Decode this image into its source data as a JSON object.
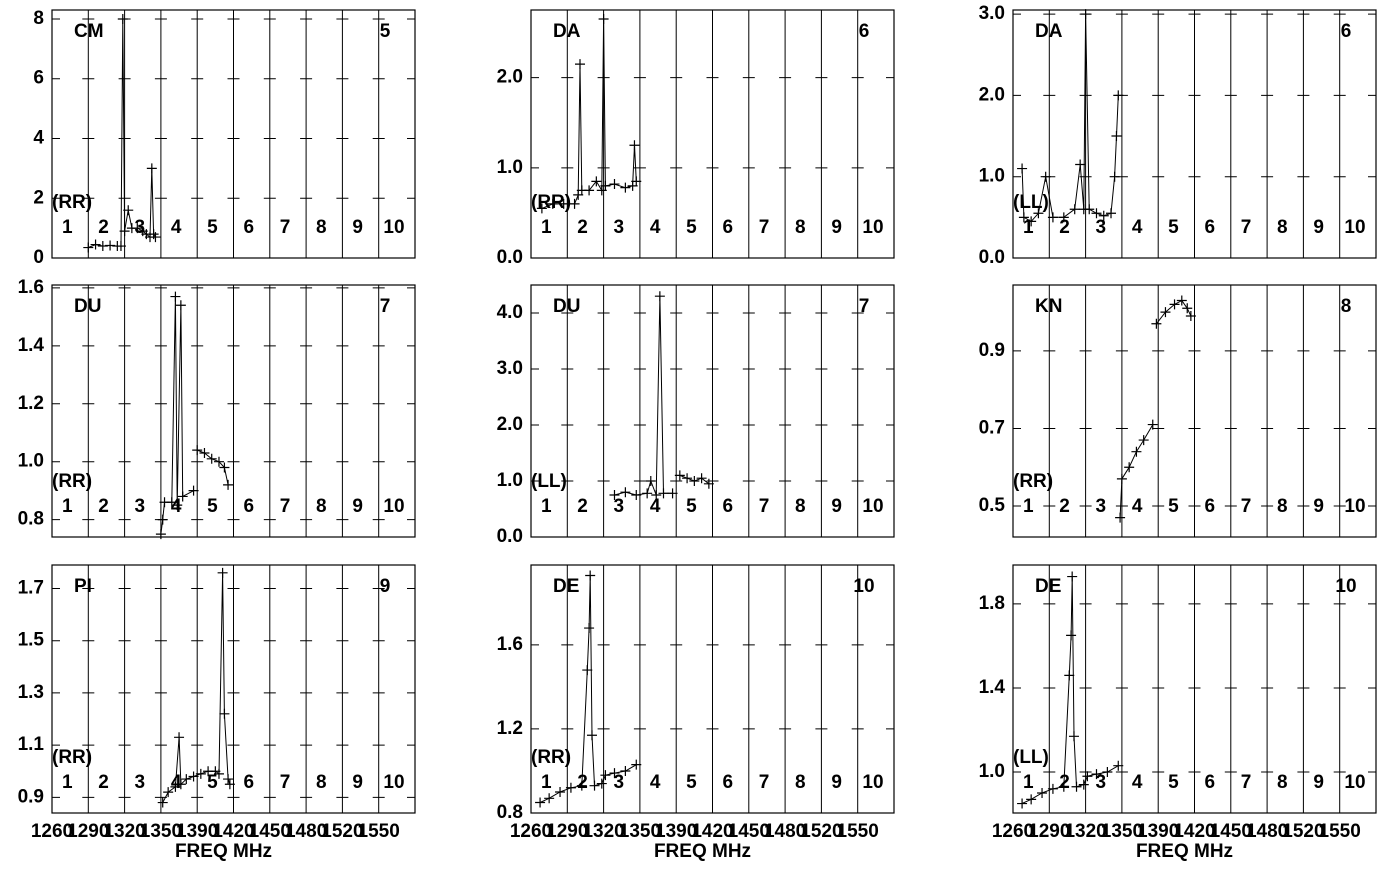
{
  "chart_data": [
    {
      "type": "line",
      "source": "CM",
      "panel_number": 5,
      "polarization": "(RR)",
      "spw_labels": [
        1,
        2,
        3,
        4,
        5,
        6,
        7,
        8,
        9,
        10
      ],
      "xlim": [
        0,
        10
      ],
      "xticks": [
        {
          "value": 0,
          "label": "1260"
        },
        {
          "value": 1,
          "label": "1290"
        },
        {
          "value": 2,
          "label": "1320"
        },
        {
          "value": 3,
          "label": "1350"
        },
        {
          "value": 4,
          "label": "1390"
        },
        {
          "value": 5,
          "label": "1420"
        },
        {
          "value": 6,
          "label": "1450"
        },
        {
          "value": 7,
          "label": "1480"
        },
        {
          "value": 8,
          "label": "1520"
        },
        {
          "value": 9,
          "label": "1550"
        }
      ],
      "ylim": [
        0,
        8.3
      ],
      "yticks": [
        0,
        2,
        4,
        6,
        8
      ],
      "color": "#000000",
      "x": [
        1.0,
        1.2,
        1.4,
        1.6,
        1.8,
        1.9,
        1.95,
        2.0,
        2.1,
        2.2,
        2.35,
        2.5,
        2.6,
        2.7,
        2.75,
        2.8,
        2.85
      ],
      "values": [
        0.35,
        0.45,
        0.4,
        0.42,
        0.4,
        0.4,
        8.0,
        0.9,
        1.6,
        1.0,
        1.0,
        0.9,
        0.8,
        0.7,
        3.0,
        0.8,
        0.7
      ]
    },
    {
      "type": "line",
      "source": "DA",
      "panel_number": 6,
      "polarization": "(RR)",
      "spw_labels": [
        1,
        2,
        3,
        4,
        5,
        6,
        7,
        8,
        9,
        10
      ],
      "xlim": [
        0,
        10
      ],
      "xticks": [
        {
          "value": 0,
          "label": "1260"
        },
        {
          "value": 1,
          "label": "1290"
        },
        {
          "value": 2,
          "label": "1320"
        },
        {
          "value": 3,
          "label": "1350"
        },
        {
          "value": 4,
          "label": "1390"
        },
        {
          "value": 5,
          "label": "1420"
        },
        {
          "value": 6,
          "label": "1450"
        },
        {
          "value": 7,
          "label": "1480"
        },
        {
          "value": 8,
          "label": "1520"
        },
        {
          "value": 9,
          "label": "1550"
        }
      ],
      "ylim": [
        0,
        2.75
      ],
      "yticks": [
        {
          "value": 0,
          "label": "0.0"
        },
        {
          "value": 1,
          "label": "1.0"
        },
        {
          "value": 2,
          "label": "2.0"
        }
      ],
      "color": "#000000",
      "x": [
        0.3,
        0.6,
        0.9,
        1.2,
        1.3,
        1.35,
        1.4,
        1.6,
        1.8,
        1.95,
        2.0,
        2.05,
        2.3,
        2.6,
        2.8,
        2.85,
        2.9
      ],
      "values": [
        0.55,
        0.6,
        0.6,
        0.6,
        0.7,
        2.15,
        0.75,
        0.75,
        0.85,
        0.75,
        2.65,
        0.8,
        0.82,
        0.78,
        0.8,
        1.25,
        0.85
      ]
    },
    {
      "type": "line",
      "source": "DA",
      "panel_number": 6,
      "polarization": "(LL)",
      "spw_labels": [
        1,
        2,
        3,
        4,
        5,
        6,
        7,
        8,
        9,
        10
      ],
      "xlim": [
        0,
        10
      ],
      "xticks": [
        {
          "value": 0,
          "label": "1260"
        },
        {
          "value": 1,
          "label": "1290"
        },
        {
          "value": 2,
          "label": "1320"
        },
        {
          "value": 3,
          "label": "1350"
        },
        {
          "value": 4,
          "label": "1390"
        },
        {
          "value": 5,
          "label": "1420"
        },
        {
          "value": 6,
          "label": "1450"
        },
        {
          "value": 7,
          "label": "1480"
        },
        {
          "value": 8,
          "label": "1520"
        },
        {
          "value": 9,
          "label": "1550"
        }
      ],
      "ylim": [
        0,
        3.05
      ],
      "yticks": [
        {
          "value": 0,
          "label": "0.0"
        },
        {
          "value": 1,
          "label": "1.0"
        },
        {
          "value": 2,
          "label": "2.0"
        },
        {
          "value": 3,
          "label": "3.0"
        }
      ],
      "color": "#000000",
      "x": [
        0.25,
        0.3,
        0.5,
        0.7,
        0.9,
        1.1,
        1.4,
        1.7,
        1.85,
        1.95,
        2.0,
        2.1,
        2.3,
        2.5,
        2.7,
        2.8,
        2.85,
        2.9
      ],
      "values": [
        1.1,
        0.5,
        0.45,
        0.55,
        1.0,
        0.5,
        0.5,
        0.6,
        1.15,
        0.6,
        3.0,
        0.6,
        0.55,
        0.52,
        0.55,
        1.0,
        1.5,
        2.0
      ]
    },
    {
      "type": "line",
      "source": "DU",
      "panel_number": 7,
      "polarization": "(RR)",
      "spw_labels": [
        1,
        2,
        3,
        4,
        5,
        6,
        7,
        8,
        9,
        10
      ],
      "xlim": [
        0,
        10
      ],
      "xticks": [
        {
          "value": 0,
          "label": "1260"
        },
        {
          "value": 1,
          "label": "1290"
        },
        {
          "value": 2,
          "label": "1320"
        },
        {
          "value": 3,
          "label": "1350"
        },
        {
          "value": 4,
          "label": "1390"
        },
        {
          "value": 5,
          "label": "1420"
        },
        {
          "value": 6,
          "label": "1450"
        },
        {
          "value": 7,
          "label": "1480"
        },
        {
          "value": 8,
          "label": "1520"
        },
        {
          "value": 9,
          "label": "1550"
        }
      ],
      "ylim": [
        0.74,
        1.61
      ],
      "yticks": [
        0.8,
        {
          "value": 1,
          "label": "1.0"
        },
        1.2,
        1.4,
        1.6
      ],
      "color": "#000000",
      "x": [
        3.0,
        3.05,
        3.1,
        3.3,
        3.4,
        3.45,
        3.55,
        3.6,
        3.9,
        3.95,
        4.0,
        4.2,
        4.4,
        4.6,
        4.75,
        4.85
      ],
      "values": [
        0.75,
        0.8,
        0.86,
        0.86,
        1.57,
        0.85,
        1.54,
        0.88,
        0.9,
        null,
        1.04,
        1.03,
        1.01,
        1.0,
        0.98,
        0.92
      ]
    },
    {
      "type": "line",
      "source": "DU",
      "panel_number": 7,
      "polarization": "(LL)",
      "spw_labels": [
        1,
        2,
        3,
        4,
        5,
        6,
        7,
        8,
        9,
        10
      ],
      "xlim": [
        0,
        10
      ],
      "xticks": [
        {
          "value": 0,
          "label": "1260"
        },
        {
          "value": 1,
          "label": "1290"
        },
        {
          "value": 2,
          "label": "1320"
        },
        {
          "value": 3,
          "label": "1350"
        },
        {
          "value": 4,
          "label": "1390"
        },
        {
          "value": 5,
          "label": "1420"
        },
        {
          "value": 6,
          "label": "1450"
        },
        {
          "value": 7,
          "label": "1480"
        },
        {
          "value": 8,
          "label": "1520"
        },
        {
          "value": 9,
          "label": "1550"
        }
      ],
      "ylim": [
        0,
        4.5
      ],
      "yticks": [
        {
          "value": 0,
          "label": "0.0"
        },
        {
          "value": 1,
          "label": "1.0"
        },
        {
          "value": 2,
          "label": "2.0"
        },
        {
          "value": 3,
          "label": "3.0"
        },
        {
          "value": 4,
          "label": "4.0"
        }
      ],
      "color": "#000000",
      "x": [
        2.3,
        2.6,
        2.9,
        3.2,
        3.3,
        3.45,
        3.55,
        3.65,
        3.9,
        3.95,
        4.1,
        4.3,
        4.5,
        4.7,
        4.9
      ],
      "values": [
        0.75,
        0.8,
        0.75,
        0.78,
        1.0,
        0.75,
        4.3,
        0.78,
        0.78,
        null,
        1.1,
        1.05,
        1.0,
        1.05,
        0.95
      ]
    },
    {
      "type": "line",
      "source": "KN",
      "panel_number": 8,
      "polarization": "(RR)",
      "spw_labels": [
        1,
        2,
        3,
        4,
        5,
        6,
        7,
        8,
        9,
        10
      ],
      "xlim": [
        0,
        10
      ],
      "xticks": [
        {
          "value": 0,
          "label": "1260"
        },
        {
          "value": 1,
          "label": "1290"
        },
        {
          "value": 2,
          "label": "1320"
        },
        {
          "value": 3,
          "label": "1350"
        },
        {
          "value": 4,
          "label": "1390"
        },
        {
          "value": 5,
          "label": "1420"
        },
        {
          "value": 6,
          "label": "1450"
        },
        {
          "value": 7,
          "label": "1480"
        },
        {
          "value": 8,
          "label": "1520"
        },
        {
          "value": 9,
          "label": "1550"
        }
      ],
      "ylim": [
        0.42,
        1.07
      ],
      "yticks": [
        0.5,
        0.7,
        0.9
      ],
      "color": "#000000",
      "x": [
        2.95,
        3.0,
        3.2,
        3.4,
        3.6,
        3.85,
        3.9,
        3.95,
        4.2,
        4.45,
        4.65,
        4.8,
        4.9
      ],
      "values": [
        0.47,
        0.57,
        0.6,
        0.64,
        0.67,
        0.71,
        null,
        0.97,
        1.0,
        1.02,
        1.03,
        1.01,
        0.99
      ]
    },
    {
      "type": "line",
      "source": "PI",
      "panel_number": 9,
      "polarization": "(RR)",
      "spw_labels": [
        1,
        2,
        3,
        4,
        5,
        6,
        7,
        8,
        9,
        10
      ],
      "xlim": [
        0,
        10
      ],
      "xticks": [
        {
          "value": 0,
          "label": "1260"
        },
        {
          "value": 1,
          "label": "1290"
        },
        {
          "value": 2,
          "label": "1320"
        },
        {
          "value": 3,
          "label": "1350"
        },
        {
          "value": 4,
          "label": "1390"
        },
        {
          "value": 5,
          "label": "1420"
        },
        {
          "value": 6,
          "label": "1450"
        },
        {
          "value": 7,
          "label": "1480"
        },
        {
          "value": 8,
          "label": "1520"
        },
        {
          "value": 9,
          "label": "1550"
        }
      ],
      "ylim": [
        0.84,
        1.79
      ],
      "yticks": [
        0.9,
        1.1,
        1.3,
        1.5,
        1.7
      ],
      "color": "#000000",
      "xlabel": "FREQ MHz",
      "x": [
        3.05,
        3.2,
        3.4,
        3.5,
        3.55,
        3.7,
        3.9,
        4.1,
        4.3,
        4.5,
        4.6,
        4.7,
        4.75,
        4.85,
        4.9
      ],
      "values": [
        0.88,
        0.92,
        0.94,
        1.13,
        0.95,
        0.97,
        0.98,
        0.99,
        1.0,
        1.0,
        0.99,
        1.76,
        1.22,
        0.97,
        0.95
      ]
    },
    {
      "type": "line",
      "source": "DE",
      "panel_number": 10,
      "polarization": "(RR)",
      "spw_labels": [
        1,
        2,
        3,
        4,
        5,
        6,
        7,
        8,
        9,
        10
      ],
      "xlim": [
        0,
        10
      ],
      "xticks": [
        {
          "value": 0,
          "label": "1260"
        },
        {
          "value": 1,
          "label": "1290"
        },
        {
          "value": 2,
          "label": "1320"
        },
        {
          "value": 3,
          "label": "1350"
        },
        {
          "value": 4,
          "label": "1390"
        },
        {
          "value": 5,
          "label": "1420"
        },
        {
          "value": 6,
          "label": "1450"
        },
        {
          "value": 7,
          "label": "1480"
        },
        {
          "value": 8,
          "label": "1520"
        },
        {
          "value": 9,
          "label": "1550"
        }
      ],
      "ylim": [
        0.8,
        1.98
      ],
      "yticks": [
        0.8,
        1.2,
        1.6
      ],
      "color": "#000000",
      "xlabel": "FREQ MHz",
      "x": [
        0.25,
        0.5,
        0.8,
        1.1,
        1.4,
        1.55,
        1.6,
        1.63,
        1.68,
        1.75,
        1.95,
        2.05,
        2.3,
        2.6,
        2.9
      ],
      "values": [
        0.85,
        0.87,
        0.9,
        0.92,
        0.93,
        1.48,
        1.68,
        1.93,
        1.17,
        0.93,
        0.94,
        0.98,
        0.99,
        1.0,
        1.03
      ]
    },
    {
      "type": "line",
      "source": "DE",
      "panel_number": 10,
      "polarization": "(LL)",
      "spw_labels": [
        1,
        2,
        3,
        4,
        5,
        6,
        7,
        8,
        9,
        10
      ],
      "xlim": [
        0,
        10
      ],
      "xticks": [
        {
          "value": 0,
          "label": "1260"
        },
        {
          "value": 1,
          "label": "1290"
        },
        {
          "value": 2,
          "label": "1320"
        },
        {
          "value": 3,
          "label": "1350"
        },
        {
          "value": 4,
          "label": "1390"
        },
        {
          "value": 5,
          "label": "1420"
        },
        {
          "value": 6,
          "label": "1450"
        },
        {
          "value": 7,
          "label": "1480"
        },
        {
          "value": 8,
          "label": "1520"
        },
        {
          "value": 9,
          "label": "1550"
        }
      ],
      "ylim": [
        0.805,
        1.985
      ],
      "yticks": [
        {
          "value": 1,
          "label": "1.0"
        },
        1.4,
        1.8
      ],
      "color": "#000000",
      "xlabel": "FREQ MHz",
      "x": [
        0.25,
        0.5,
        0.8,
        1.1,
        1.4,
        1.55,
        1.6,
        1.63,
        1.68,
        1.75,
        1.95,
        2.05,
        2.3,
        2.6,
        2.9
      ],
      "values": [
        0.85,
        0.87,
        0.9,
        0.92,
        0.93,
        1.46,
        1.65,
        1.93,
        1.17,
        0.93,
        0.94,
        0.98,
        0.99,
        1.0,
        1.03
      ]
    }
  ]
}
